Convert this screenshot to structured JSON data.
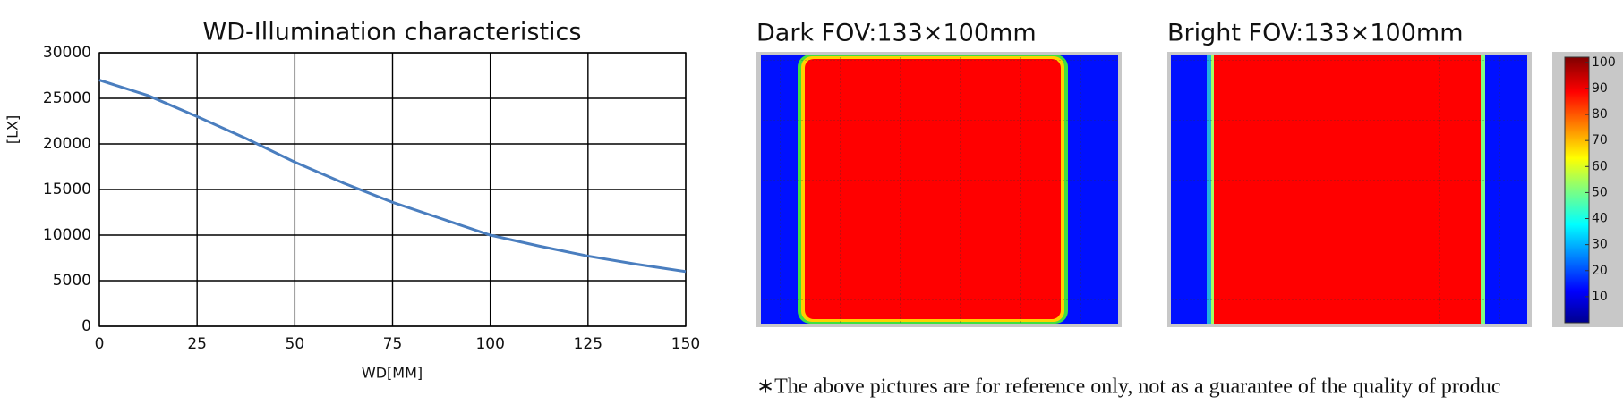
{
  "chart_data": {
    "type": "line",
    "title": "WD-Illumination characteristics",
    "x_label": "WD[MM]",
    "y_label": "[LX]",
    "x": [
      0,
      12.5,
      25,
      37.5,
      50,
      62.5,
      75,
      87.5,
      100,
      112.5,
      125,
      137.5,
      150
    ],
    "series": [
      {
        "color": "#4a7ebf",
        "values": [
          27000,
          25300,
          23000,
          20600,
          18000,
          15700,
          13600,
          11800,
          10000,
          8800,
          7700,
          6800,
          6000
        ]
      }
    ],
    "xlim": [
      0,
      150
    ],
    "xticks": [
      0,
      25,
      50,
      75,
      100,
      125,
      150
    ],
    "ylim": [
      0,
      30000
    ],
    "yticks": [
      0,
      5000,
      10000,
      15000,
      20000,
      25000,
      30000
    ],
    "grid": true
  },
  "images": {
    "dark_title": "Dark FOV:133×100mm",
    "bright_title": "Bright FOV:133×100mm",
    "colorbar_lim": [
      0,
      102
    ],
    "colorbar_ticks": [
      10,
      20,
      30,
      40,
      50,
      60,
      70,
      80,
      90,
      100
    ]
  },
  "footnote": "∗The above pictures are for reference only, not as a guarantee of the quality of produc"
}
